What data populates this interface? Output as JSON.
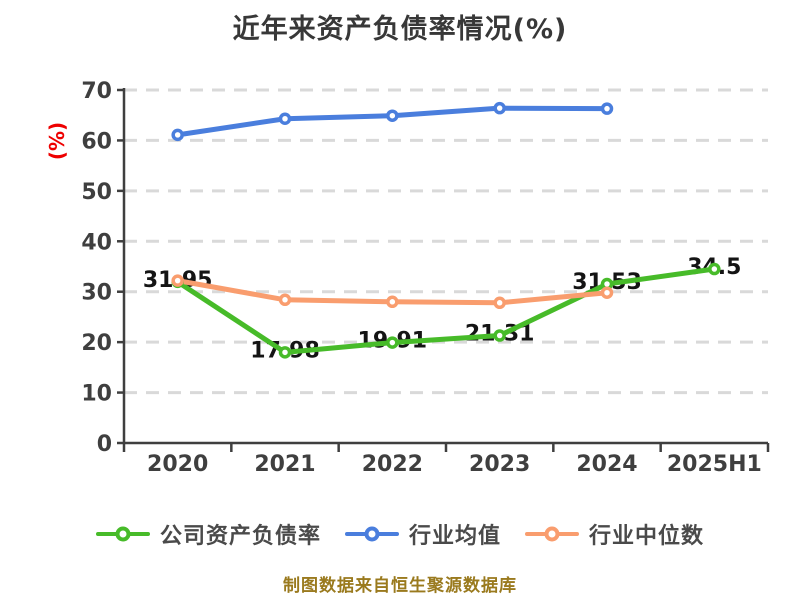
{
  "colors": {
    "grid": "#d9d9d9",
    "axis": "#3f3f3f",
    "text": "#3f3f3f",
    "title": "#383838",
    "yunit": "#ee0000",
    "footer": "#9a7a1e",
    "label": "#141414",
    "legend": "#4a4a4a"
  },
  "footer": {
    "text": "制图数据来自恒生聚源数据库"
  },
  "chart_data": {
    "type": "line",
    "title": "近年来资产负债率情况(%)",
    "ylabel": "(%)",
    "xlabel": "",
    "categories": [
      "2020",
      "2021",
      "2022",
      "2023",
      "2024",
      "2025H1"
    ],
    "series": [
      {
        "name": "公司资产负债率",
        "color": "#47bb29",
        "values": [
          31.95,
          17.98,
          19.91,
          21.31,
          31.53,
          34.5
        ],
        "labels": [
          "31.95",
          "17.98",
          "19.91",
          "21.31",
          "31.53",
          "34.5"
        ]
      },
      {
        "name": "行业均值",
        "color": "#4a7edd",
        "values": [
          61.1,
          64.3,
          64.9,
          66.4,
          66.3
        ]
      },
      {
        "name": "行业中位数",
        "color": "#f99d6e",
        "values": [
          32.2,
          28.4,
          28.0,
          27.8,
          29.8
        ]
      }
    ],
    "ylim": [
      0,
      70
    ],
    "yticks": [
      0,
      10,
      20,
      30,
      40,
      50,
      60,
      70
    ],
    "grid": "horizontal-dashed",
    "legend_position": "bottom",
    "marker": "open-circle-white-fill"
  }
}
